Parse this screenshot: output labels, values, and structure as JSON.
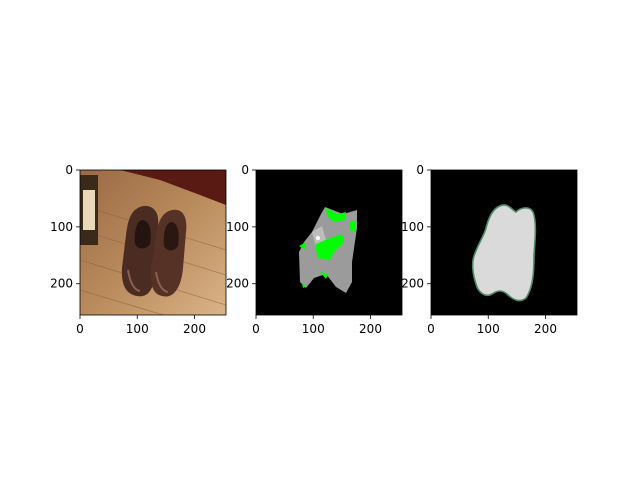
{
  "figure": {
    "background": "#ffffff",
    "panels": [
      {
        "name": "photo",
        "content": "photograph of a pair of brown wingtip shoes on a wooden floor",
        "xlim": [
          0,
          255
        ],
        "ylim": [
          255,
          0
        ],
        "xticks": [
          "0",
          "100",
          "200"
        ],
        "yticks": [
          "0",
          "100",
          "200"
        ],
        "colors": {
          "wood": "#b8875a",
          "shoe": "#4a2c22"
        }
      },
      {
        "name": "segmentation-overlay",
        "content": "segmentation mask: gray region with green patches on black background",
        "xlim": [
          0,
          255
        ],
        "ylim": [
          255,
          0
        ],
        "xticks": [
          "0",
          "100",
          "200"
        ],
        "yticks": [
          "0",
          "100",
          "200"
        ],
        "colors": {
          "background": "#000000",
          "mask": "#9b9b9b",
          "highlight": "#00ff00"
        }
      },
      {
        "name": "mask-outline",
        "content": "light gray blob mask with thin green-gray outline on black background",
        "xlim": [
          0,
          255
        ],
        "ylim": [
          255,
          0
        ],
        "xticks": [
          "0",
          "100",
          "200"
        ],
        "yticks": [
          "0",
          "100",
          "200"
        ],
        "colors": {
          "background": "#000000",
          "mask": "#dadada",
          "outline": "#4f8a6a"
        }
      }
    ]
  }
}
